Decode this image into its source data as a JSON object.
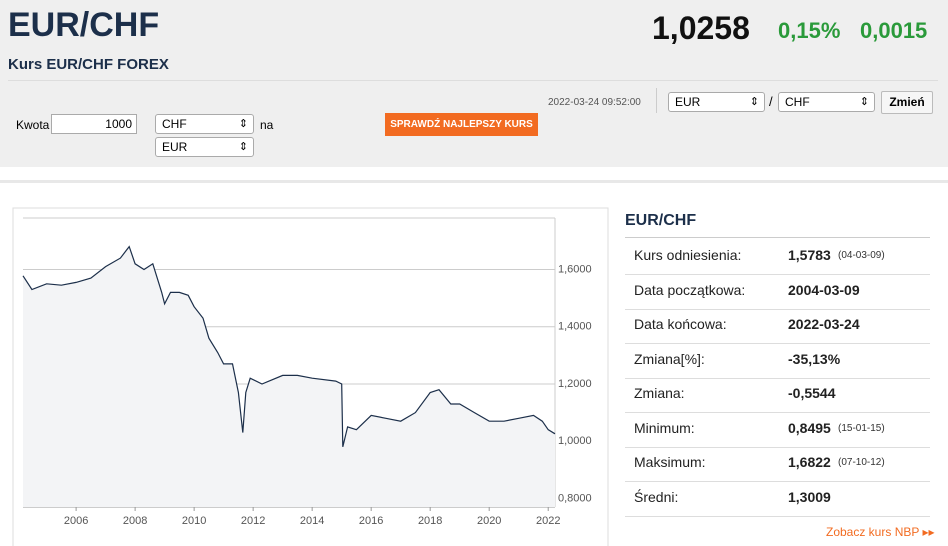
{
  "header": {
    "title": "EUR/CHF",
    "subtitle": "Kurs EUR/CHF FOREX",
    "price": "1,0258",
    "change_pct": "0,15%",
    "change_abs": "0,0015"
  },
  "converter": {
    "amount_label": "Kwota",
    "amount": "1000",
    "from": "CHF",
    "joiner": "na",
    "to": "EUR",
    "button": "SPRAWDŹ NAJLEPSZY KURS"
  },
  "pair_selector": {
    "timestamp": "2022-03-24 09:52:00",
    "base": "EUR",
    "separator": "/",
    "quote": "CHF",
    "button": "Zmień"
  },
  "stats": {
    "title": "EUR/CHF",
    "rows": [
      {
        "label": "Kurs odniesienia:",
        "value": "1,5783",
        "date": "(04-03-09)"
      },
      {
        "label": "Data początkowa:",
        "value": "2004-03-09"
      },
      {
        "label": "Data końcowa:",
        "value": "2022-03-24"
      },
      {
        "label": "Zmiana[%]:",
        "value": "-35,13%"
      },
      {
        "label": "Zmiana:",
        "value": "-0,5544"
      },
      {
        "label": "Minimum:",
        "value": "0,8495",
        "date": "(15-01-15)"
      },
      {
        "label": "Maksimum:",
        "value": "1,6822",
        "date": "(07-10-12)"
      },
      {
        "label": "Średni:",
        "value": "1,3009"
      }
    ]
  },
  "link": "Zobacz kurs NBP",
  "chart_data": {
    "type": "area",
    "color": "#1c2f4a",
    "fill": "#f3f4f6",
    "x": [
      2004.2,
      2004.5,
      2005.0,
      2005.5,
      2006.0,
      2006.5,
      2007.0,
      2007.5,
      2007.8,
      2008.0,
      2008.3,
      2008.6,
      2008.9,
      2009.0,
      2009.2,
      2009.5,
      2009.8,
      2010.0,
      2010.3,
      2010.5,
      2010.8,
      2011.0,
      2011.3,
      2011.5,
      2011.65,
      2011.75,
      2011.9,
      2012.3,
      2013.0,
      2013.5,
      2014.0,
      2014.8,
      2015.0,
      2015.04,
      2015.2,
      2015.5,
      2016.0,
      2016.5,
      2017.0,
      2017.5,
      2018.0,
      2018.3,
      2018.7,
      2019.0,
      2019.5,
      2020.0,
      2020.5,
      2021.0,
      2021.5,
      2021.8,
      2022.0,
      2022.23
    ],
    "values": [
      1.578,
      1.53,
      1.55,
      1.545,
      1.555,
      1.57,
      1.61,
      1.64,
      1.68,
      1.62,
      1.6,
      1.62,
      1.52,
      1.48,
      1.52,
      1.52,
      1.51,
      1.47,
      1.43,
      1.36,
      1.31,
      1.27,
      1.27,
      1.17,
      1.03,
      1.17,
      1.22,
      1.2,
      1.23,
      1.23,
      1.22,
      1.21,
      1.2,
      0.98,
      1.05,
      1.04,
      1.09,
      1.08,
      1.07,
      1.1,
      1.17,
      1.18,
      1.13,
      1.13,
      1.1,
      1.07,
      1.07,
      1.08,
      1.09,
      1.07,
      1.04,
      1.0258
    ],
    "xlim": [
      2004.2,
      2022.23
    ],
    "xticks": [
      2006,
      2008,
      2010,
      2012,
      2014,
      2016,
      2018,
      2020,
      2022
    ],
    "ylim": [
      0.77,
      1.78
    ],
    "yticks": [
      {
        "value": 0.8,
        "label": "0,8000"
      },
      {
        "value": 1.0,
        "label": "1,0000"
      },
      {
        "value": 1.2,
        "label": "1,2000"
      },
      {
        "value": 1.4,
        "label": "1,4000"
      },
      {
        "value": 1.6,
        "label": "1,6000"
      }
    ],
    "grid": true
  }
}
